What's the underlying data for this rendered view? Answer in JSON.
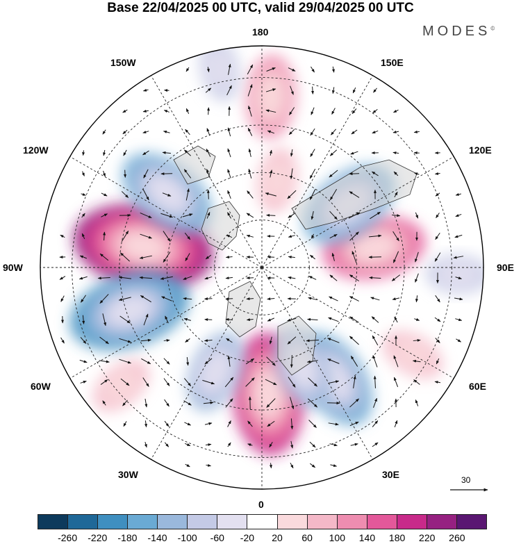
{
  "title": "Base 22/04/2025 00 UTC, valid 29/04/2025 00 UTC",
  "brand": {
    "name": "MODES",
    "mark": "©"
  },
  "longitude_labels": {
    "top": "180",
    "bottom": "0",
    "left": "90W",
    "right": "90E",
    "upper_left_1": "150W",
    "upper_left_2": "120W",
    "upper_right_1": "150E",
    "upper_right_2": "120E",
    "lower_left_1": "60W",
    "lower_left_2": "30W",
    "lower_right_1": "60E",
    "lower_right_2": "30E"
  },
  "vector_scale": {
    "value": "30"
  },
  "colorbar": {
    "colors": [
      "#0d3a5c",
      "#1f6898",
      "#3f8fc0",
      "#6aaad4",
      "#9ab8dc",
      "#c4cae6",
      "#e3e0f0",
      "#ffffff",
      "#fadadd",
      "#f4b8c8",
      "#ee8db0",
      "#e3589a",
      "#c82a8a",
      "#962181",
      "#5a1772"
    ],
    "tick_labels": [
      "-260",
      "-220",
      "-180",
      "-140",
      "-100",
      "-60",
      "-20",
      "20",
      "60",
      "100",
      "140",
      "180",
      "220",
      "260"
    ]
  },
  "anomalies": [
    {
      "lon": -100,
      "colat": 38,
      "value": 230
    },
    {
      "lon": -72,
      "colat": 44,
      "value": -190
    },
    {
      "lon": -128,
      "colat": 38,
      "value": -160
    },
    {
      "lon": 100,
      "colat": 36,
      "value": 170
    },
    {
      "lon": 126,
      "colat": 34,
      "value": -150
    },
    {
      "lon": 3,
      "colat": 40,
      "value": 210
    },
    {
      "lon": 33,
      "colat": 42,
      "value": -160
    },
    {
      "lon": 22,
      "colat": 34,
      "value": -130
    },
    {
      "lon": -24,
      "colat": 36,
      "value": -120
    },
    {
      "lon": 177,
      "colat": 54,
      "value": 110
    },
    {
      "lon": 170,
      "colat": 28,
      "value": 90
    },
    {
      "lon": -168,
      "colat": 64,
      "value": -60
    },
    {
      "lon": 88,
      "colat": 62,
      "value": -90
    },
    {
      "lon": -50,
      "colat": 58,
      "value": 80
    },
    {
      "lon": 60,
      "colat": 55,
      "value": 70
    }
  ]
}
